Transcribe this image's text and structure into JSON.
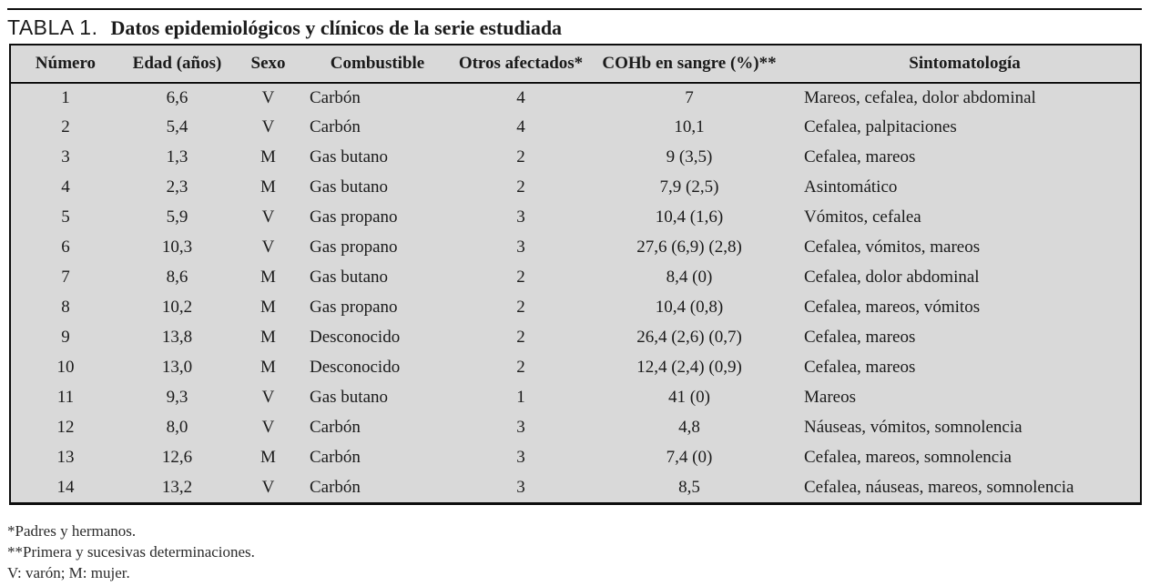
{
  "page": {
    "title_prefix": "TABLA 1.",
    "title": "Datos epidemiológicos y clínicos de la serie estudiada"
  },
  "table": {
    "columns": [
      "Número",
      "Edad (años)",
      "Sexo",
      "Combustible",
      "Otros afectados*",
      "COHb en sangre (%)**",
      "Sintomatología"
    ],
    "rows": [
      [
        "1",
        "6,6",
        "V",
        "Carbón",
        "4",
        "7",
        "Mareos, cefalea, dolor abdominal"
      ],
      [
        "2",
        "5,4",
        "V",
        "Carbón",
        "4",
        "10,1",
        "Cefalea, palpitaciones"
      ],
      [
        "3",
        "1,3",
        "M",
        "Gas butano",
        "2",
        "9 (3,5)",
        "Cefalea, mareos"
      ],
      [
        "4",
        "2,3",
        "M",
        "Gas butano",
        "2",
        "7,9 (2,5)",
        "Asintomático"
      ],
      [
        "5",
        "5,9",
        "V",
        "Gas propano",
        "3",
        "10,4 (1,6)",
        "Vómitos, cefalea"
      ],
      [
        "6",
        "10,3",
        "V",
        "Gas propano",
        "3",
        "27,6 (6,9) (2,8)",
        "Cefalea, vómitos, mareos"
      ],
      [
        "7",
        "8,6",
        "M",
        "Gas butano",
        "2",
        "8,4 (0)",
        "Cefalea, dolor abdominal"
      ],
      [
        "8",
        "10,2",
        "M",
        "Gas propano",
        "2",
        "10,4 (0,8)",
        "Cefalea, mareos, vómitos"
      ],
      [
        "9",
        "13,8",
        "M",
        "Desconocido",
        "2",
        "26,4 (2,6) (0,7)",
        "Cefalea, mareos"
      ],
      [
        "10",
        "13,0",
        "M",
        "Desconocido",
        "2",
        "12,4 (2,4) (0,9)",
        "Cefalea, mareos"
      ],
      [
        "11",
        "9,3",
        "V",
        "Gas butano",
        "1",
        "41 (0)",
        "Mareos"
      ],
      [
        "12",
        "8,0",
        "V",
        "Carbón",
        "3",
        "4,8",
        "Náuseas, vómitos, somnolencia"
      ],
      [
        "13",
        "12,6",
        "M",
        "Carbón",
        "3",
        "7,4 (0)",
        "Cefalea, mareos, somnolencia"
      ],
      [
        "14",
        "13,2",
        "V",
        "Carbón",
        "3",
        "8,5",
        "Cefalea, náuseas, mareos, somnolencia"
      ]
    ],
    "footnotes": [
      "*Padres y hermanos.",
      "**Primera y sucesivas determinaciones.",
      "V: varón; M: mujer."
    ]
  },
  "colors": {
    "table_background": "#d9d9d9",
    "rule": "#0d0d0d",
    "text": "#1b1b1b"
  }
}
